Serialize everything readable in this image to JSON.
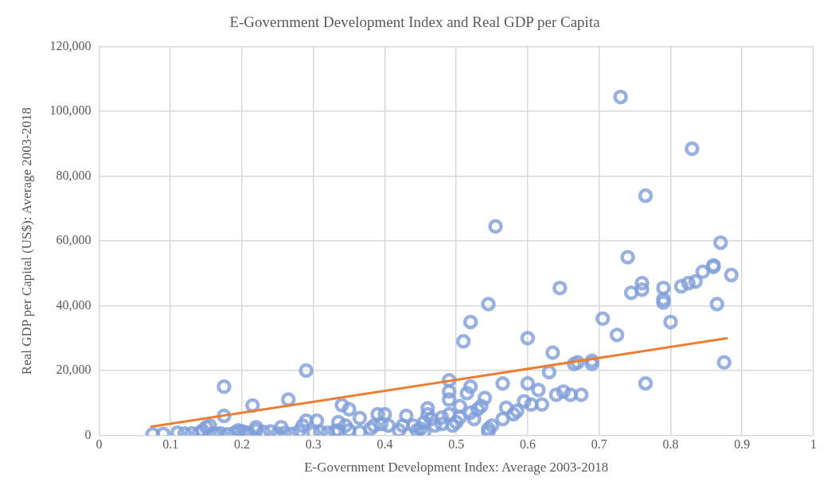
{
  "chart_data": {
    "type": "scatter",
    "title": "E-Government Development Index and Real GDP per Capita",
    "xlabel": "E-Government Development Index: Average 2003-2018",
    "ylabel": "Real GDP per Capital (US$): Average 2003-2018",
    "xlim": [
      0,
      1
    ],
    "xticks": [
      0,
      0.1,
      0.2,
      0.3,
      0.4,
      0.5,
      0.6,
      0.7,
      0.8,
      0.9,
      1
    ],
    "ylim": [
      0,
      120000
    ],
    "yticks": [
      {
        "value": 0,
        "label": "0"
      },
      {
        "value": 20000,
        "label": "20,000"
      },
      {
        "value": 40000,
        "label": "40,000"
      },
      {
        "value": 60000,
        "label": "60,000"
      },
      {
        "value": 80000,
        "label": "80,000"
      },
      {
        "value": 100000,
        "label": "100,000"
      },
      {
        "value": 120000,
        "label": "120,000"
      }
    ],
    "grid": true,
    "legend": false,
    "marker": "circle",
    "series": [
      {
        "type": "scatter",
        "color": "#7e9dd8",
        "x": [
          0.075,
          0.09,
          0.11,
          0.12,
          0.13,
          0.14,
          0.145,
          0.15,
          0.155,
          0.16,
          0.165,
          0.17,
          0.175,
          0.175,
          0.18,
          0.19,
          0.195,
          0.2,
          0.205,
          0.21,
          0.215,
          0.22,
          0.22,
          0.23,
          0.24,
          0.25,
          0.255,
          0.26,
          0.265,
          0.27,
          0.28,
          0.285,
          0.29,
          0.29,
          0.3,
          0.305,
          0.31,
          0.32,
          0.33,
          0.335,
          0.335,
          0.34,
          0.345,
          0.35,
          0.35,
          0.365,
          0.365,
          0.38,
          0.385,
          0.39,
          0.395,
          0.4,
          0.405,
          0.42,
          0.425,
          0.43,
          0.44,
          0.445,
          0.45,
          0.455,
          0.455,
          0.46,
          0.46,
          0.465,
          0.47,
          0.48,
          0.48,
          0.49,
          0.49,
          0.49,
          0.49,
          0.495,
          0.5,
          0.505,
          0.505,
          0.51,
          0.515,
          0.52,
          0.52,
          0.52,
          0.525,
          0.53,
          0.535,
          0.54,
          0.545,
          0.545,
          0.545,
          0.55,
          0.555,
          0.565,
          0.565,
          0.57,
          0.58,
          0.585,
          0.595,
          0.6,
          0.6,
          0.605,
          0.615,
          0.62,
          0.63,
          0.635,
          0.64,
          0.645,
          0.65,
          0.66,
          0.665,
          0.67,
          0.675,
          0.69,
          0.69,
          0.705,
          0.725,
          0.73,
          0.74,
          0.745,
          0.76,
          0.76,
          0.765,
          0.765,
          0.79,
          0.79,
          0.79,
          0.8,
          0.815,
          0.825,
          0.83,
          0.835,
          0.845,
          0.86,
          0.86,
          0.865,
          0.87,
          0.875,
          0.885
        ],
        "values": [
          300,
          400,
          800,
          500,
          600,
          700,
          1500,
          2500,
          3000,
          500,
          400,
          600,
          15000,
          6000,
          300,
          800,
          1500,
          1200,
          900,
          500,
          9200,
          2500,
          1500,
          1000,
          1200,
          500,
          2500,
          800,
          11000,
          400,
          1200,
          3000,
          20000,
          4500,
          800,
          4500,
          1000,
          800,
          1200,
          1500,
          4000,
          9300,
          3000,
          8000,
          1500,
          5300,
          1000,
          2000,
          3000,
          6500,
          3500,
          6500,
          3000,
          1500,
          3000,
          6000,
          3000,
          1500,
          2000,
          4000,
          1000,
          6500,
          8300,
          5000,
          3000,
          5500,
          3500,
          6500,
          11000,
          13500,
          17000,
          3000,
          4000,
          5500,
          9000,
          29000,
          13000,
          35000,
          15000,
          7000,
          5000,
          8000,
          9000,
          11500,
          40500,
          2000,
          1000,
          3000,
          64500,
          5000,
          16000,
          8500,
          6500,
          7500,
          10500,
          30000,
          16000,
          9500,
          14000,
          9500,
          19500,
          25500,
          12500,
          45500,
          13500,
          12500,
          22000,
          22500,
          12500,
          23000,
          22000,
          36000,
          31000,
          104500,
          55000,
          44000,
          47000,
          45000,
          74000,
          16000,
          45500,
          42000,
          41000,
          35000,
          46000,
          47000,
          88500,
          47500,
          50500,
          52500,
          52000,
          40500,
          59500,
          22500,
          49500
        ]
      },
      {
        "type": "line",
        "color": "#ed7d31",
        "marker": "none",
        "x": [
          0.072,
          0.88
        ],
        "values": [
          2600,
          30000
        ]
      }
    ]
  }
}
